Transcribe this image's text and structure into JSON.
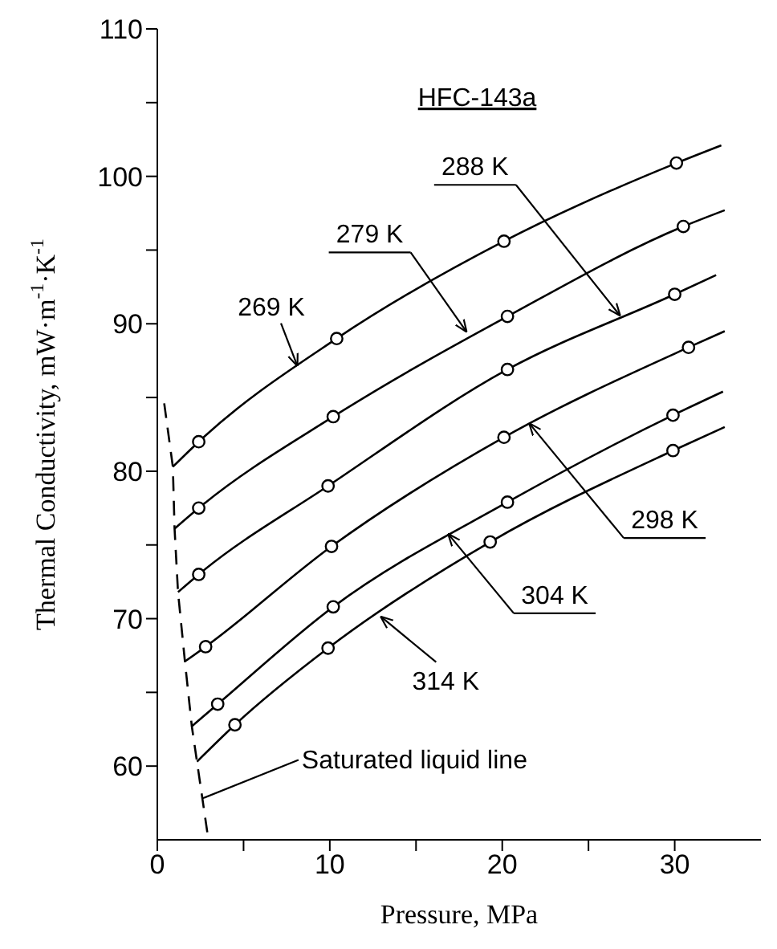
{
  "chart_data": {
    "type": "line",
    "title": "HFC-143a",
    "xlabel": "Pressure, MPa",
    "ylabel": "Thermal Conductivity, mW·m$^{-1}$·K$^{-1}$",
    "xlim": [
      0,
      35
    ],
    "ylim": [
      55,
      110
    ],
    "xticks": [
      0,
      {
        "value": 5,
        "label": null
      },
      10,
      {
        "value": 15,
        "label": null
      },
      20,
      {
        "value": 25,
        "label": null
      },
      30
    ],
    "yticks": [
      60,
      {
        "value": 65,
        "label": null
      },
      70,
      {
        "value": 75,
        "label": null
      },
      80,
      {
        "value": 85,
        "label": null
      },
      90,
      {
        "value": 95,
        "label": null
      },
      100,
      {
        "value": 105,
        "label": null
      },
      110
    ],
    "series": [
      {
        "marker": "none",
        "line_style": "solid",
        "color": "#000000",
        "x": [
          0.9,
          2.4,
          10.4,
          20.1,
          30.1,
          32.7
        ],
        "values": [
          80.3,
          82.0,
          89.0,
          95.6,
          100.9,
          102.1
        ]
      },
      {
        "marker": "none",
        "line_style": "solid",
        "color": "#000000",
        "x": [
          1.0,
          2.4,
          10.2,
          20.3,
          30.5,
          32.9
        ],
        "values": [
          76.1,
          77.5,
          83.7,
          90.5,
          96.6,
          97.7
        ]
      },
      {
        "marker": "none",
        "line_style": "solid",
        "color": "#000000",
        "x": [
          1.2,
          2.4,
          9.9,
          20.3,
          30.0,
          32.4
        ],
        "values": [
          71.8,
          73.0,
          79.0,
          86.9,
          92.0,
          93.3
        ]
      },
      {
        "marker": "none",
        "line_style": "solid",
        "color": "#000000",
        "x": [
          1.6,
          2.8,
          10.1,
          20.1,
          30.8,
          32.9
        ],
        "values": [
          67.1,
          68.1,
          74.9,
          82.3,
          88.4,
          89.5
        ]
      },
      {
        "marker": "none",
        "line_style": "solid",
        "color": "#000000",
        "x": [
          2.0,
          3.5,
          10.2,
          20.3,
          29.9,
          32.8
        ],
        "values": [
          62.7,
          64.2,
          70.8,
          77.9,
          83.8,
          85.4
        ]
      },
      {
        "marker": "none",
        "line_style": "solid",
        "color": "#000000",
        "x": [
          2.3,
          4.5,
          9.9,
          19.3,
          29.9,
          32.9
        ],
        "values": [
          60.3,
          62.8,
          68.0,
          75.2,
          81.4,
          83.0
        ]
      },
      {
        "type": "scatter",
        "marker": "circle",
        "color": "#000000",
        "x": [
          2.4,
          10.4,
          20.1,
          30.1
        ],
        "values": [
          82.0,
          89.0,
          95.6,
          100.9
        ]
      },
      {
        "type": "scatter",
        "marker": "circle",
        "color": "#000000",
        "x": [
          2.4,
          10.2,
          20.3,
          30.5
        ],
        "values": [
          77.5,
          83.7,
          90.5,
          96.6
        ]
      },
      {
        "type": "scatter",
        "marker": "circle",
        "color": "#000000",
        "x": [
          2.4,
          9.9,
          20.3,
          30.0
        ],
        "values": [
          73.0,
          79.0,
          86.9,
          92.0
        ]
      },
      {
        "type": "scatter",
        "marker": "circle",
        "color": "#000000",
        "x": [
          2.8,
          10.1,
          20.1,
          30.8
        ],
        "values": [
          68.1,
          74.9,
          82.3,
          88.4
        ]
      },
      {
        "type": "scatter",
        "marker": "circle",
        "color": "#000000",
        "x": [
          3.5,
          10.2,
          20.3,
          29.9
        ],
        "values": [
          64.2,
          70.8,
          77.9,
          83.8
        ]
      },
      {
        "type": "scatter",
        "marker": "circle",
        "color": "#000000",
        "x": [
          4.5,
          9.9,
          19.3,
          29.9
        ],
        "values": [
          62.8,
          68.0,
          75.2,
          81.4
        ]
      },
      {
        "marker": "none",
        "line_style": "dashed",
        "color": "#000000",
        "x": [
          0.4,
          0.9,
          1.0,
          1.2,
          1.6,
          2.0,
          2.3,
          2.9
        ],
        "values": [
          84.6,
          80.3,
          76.1,
          71.8,
          67.1,
          62.7,
          60.3,
          55.5
        ]
      }
    ],
    "annotations": [
      {
        "text": "269 K",
        "x": 8.1,
        "y": 87.2
      },
      {
        "text": "279 K",
        "x": 17.9,
        "y": 89.5
      },
      {
        "text": "288 K",
        "x": 26.8,
        "y": 90.6
      },
      {
        "text": "298 K",
        "x": 21.6,
        "y": 83.2
      },
      {
        "text": "304 K",
        "x": 16.9,
        "y": 75.7
      },
      {
        "text": "314 K",
        "x": 13.0,
        "y": 70.1
      },
      {
        "text": "Saturated liquid line",
        "x": 2.6,
        "y": 57.8
      }
    ]
  }
}
